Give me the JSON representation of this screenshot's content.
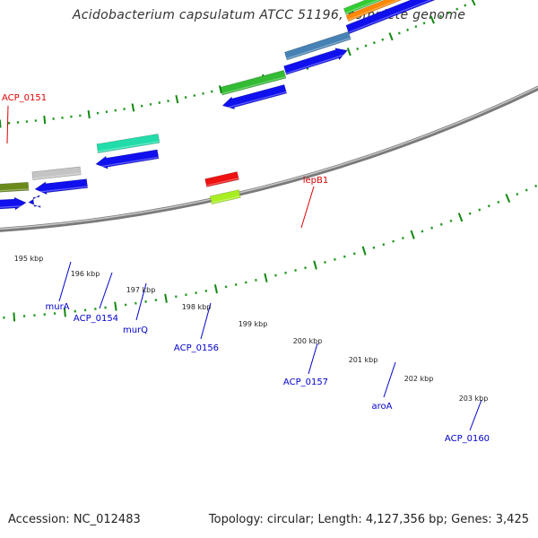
{
  "title": "Acidobacterium capsulatum ATCC 51196, complete genome",
  "footer": {
    "accession": "Accession: NC_012483",
    "summary": "Topology: circular; Length: 4,127,356 bp; Genes: 3,425"
  },
  "colors": {
    "backbone": "#8c8c8c",
    "tick": "#118811",
    "dot": "#229922",
    "blue_label": "#0000cc",
    "red_label": "#dd0000",
    "kbp_text": "#222222",
    "forward_gene": "#1010ee",
    "red_gene": "#ee1111"
  },
  "kbp_labels": [
    "195 kbp",
    "196 kbp",
    "197 kbp",
    "198 kbp",
    "199 kbp",
    "200 kbp",
    "201 kbp",
    "202 kbp",
    "203 kbp"
  ],
  "gene_labels": [
    {
      "text": "ACP_0151",
      "color": "red"
    },
    {
      "text": "lepB1",
      "color": "red"
    },
    {
      "text": "murA",
      "color": "blue"
    },
    {
      "text": "ACP_0154",
      "color": "blue"
    },
    {
      "text": "murQ",
      "color": "blue"
    },
    {
      "text": "ACP_0156",
      "color": "blue"
    },
    {
      "text": "ACP_0157",
      "color": "blue"
    },
    {
      "text": "aroA",
      "color": "blue"
    },
    {
      "text": "ACP_0160",
      "color": "blue"
    }
  ],
  "genes": [
    {
      "name": "blue-arrow",
      "color": "#1010ee",
      "direction": "reverse"
    },
    {
      "name": "blue-arrow",
      "color": "#1010ee",
      "direction": "forward"
    },
    {
      "name": "blue-arrow",
      "color": "#1010ee",
      "direction": "reverse"
    },
    {
      "name": "blue-arrow",
      "color": "#1010ee",
      "direction": "reverse"
    },
    {
      "name": "blue-arrow",
      "color": "#1010ee",
      "direction": "reverse"
    },
    {
      "name": "blue-arrow",
      "color": "#1010ee",
      "direction": "reverse"
    },
    {
      "name": "blue-arrow",
      "color": "#1010ee",
      "direction": "forward"
    },
    {
      "name": "blue-arrow",
      "color": "#1010ee",
      "direction": "forward"
    },
    {
      "name": "blue-arrow",
      "color": "#1010ee",
      "direction": "forward"
    },
    {
      "name": "red-box",
      "color": "#ee1111",
      "direction": "none"
    },
    {
      "name": "red-box",
      "color": "#ee1111",
      "direction": "none"
    },
    {
      "name": "lime-box",
      "color": "#a8ee22",
      "direction": "none"
    },
    {
      "name": "olive-box",
      "color": "#6a8a1c",
      "direction": "none"
    },
    {
      "name": "silver-box",
      "color": "#c4c4c4",
      "direction": "none"
    },
    {
      "name": "mint-box",
      "color": "#22ddaa",
      "direction": "none"
    },
    {
      "name": "green-box",
      "color": "#33bb33",
      "direction": "none"
    },
    {
      "name": "steelblue-box",
      "color": "#4682b4",
      "direction": "none"
    },
    {
      "name": "orange-box",
      "color": "#ff8800",
      "direction": "none"
    },
    {
      "name": "green-box",
      "color": "#33cc33",
      "direction": "none"
    }
  ]
}
